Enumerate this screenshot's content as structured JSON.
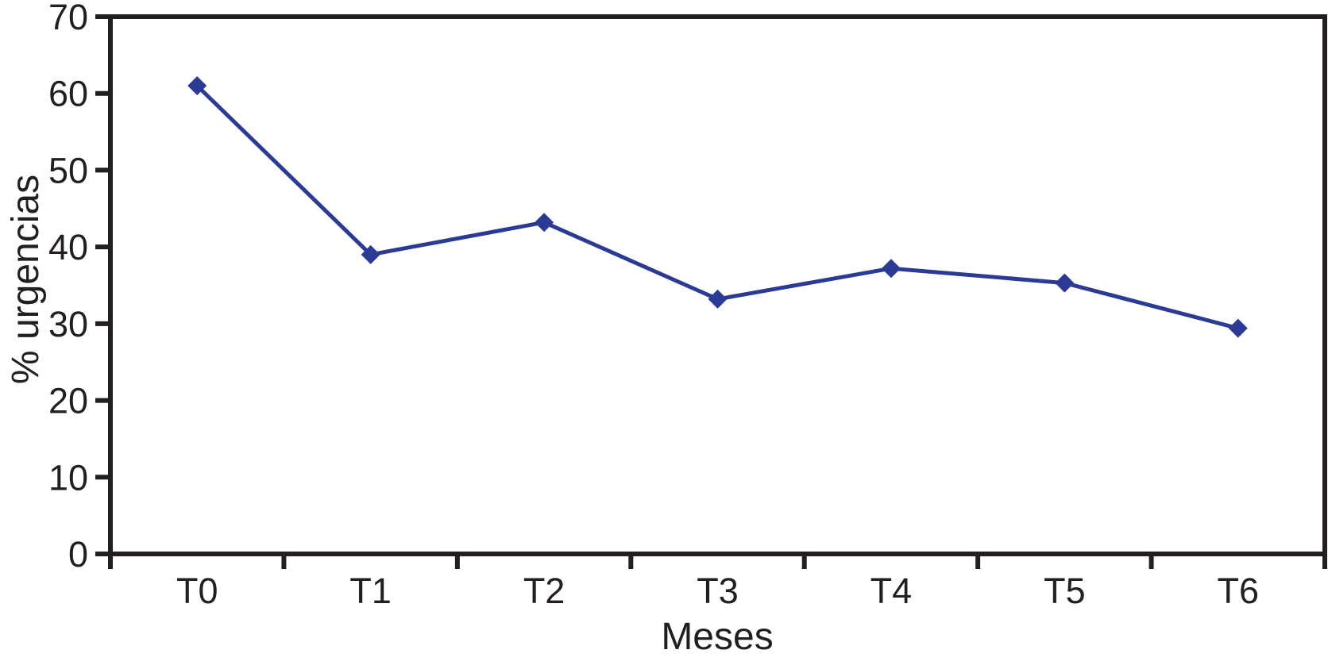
{
  "chart_data": {
    "type": "line",
    "title": "",
    "xlabel": "Meses",
    "ylabel": "% urgencias",
    "categories": [
      "T0",
      "T1",
      "T2",
      "T3",
      "T4",
      "T5",
      "T6"
    ],
    "series": [
      {
        "name": "% urgencias",
        "values": [
          61,
          39,
          43.2,
          33.2,
          37.2,
          35.3,
          29.4
        ]
      }
    ],
    "ylim": [
      0,
      70
    ],
    "yticks": [
      0,
      10,
      20,
      30,
      40,
      50,
      60,
      70
    ],
    "grid": false,
    "legend_position": "none",
    "marker": "diamond",
    "line_color": "#2b3a94",
    "marker_color": "#2b3a94",
    "axis_color": "#231f20",
    "text_color": "#231f20",
    "background": "#ffffff"
  }
}
